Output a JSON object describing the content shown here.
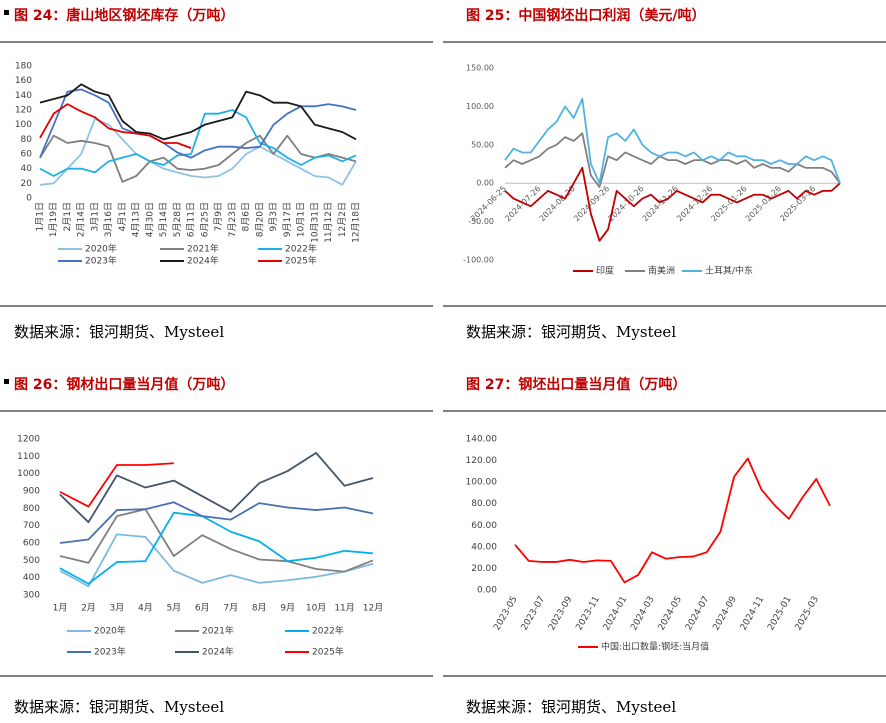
{
  "chart_data": [
    {
      "type": "line",
      "title": "图 24：唐山地区钢坯库存（万吨）",
      "source": "数据来源：银河期货、Mysteel",
      "categories": [
        "1月1日",
        "1月19日",
        "2月1日",
        "2月14日",
        "3月1日",
        "3月16日",
        "4月1日",
        "4月13日",
        "4月30日",
        "5月14日",
        "5月28日",
        "6月11日",
        "6月25日",
        "7月9日",
        "7月23日",
        "8月6日",
        "8月20日",
        "9月3日",
        "9月17日",
        "10月1日",
        "10月31日",
        "11月12日",
        "12月2日",
        "12月18日"
      ],
      "ylim": [
        0,
        180
      ],
      "yticks": [
        0,
        20,
        40,
        60,
        80,
        100,
        120,
        140,
        160,
        180
      ],
      "grid": false,
      "series": [
        {
          "name": "2020年",
          "color": "#8fc3e4",
          "values": [
            18,
            20,
            40,
            60,
            108,
            100,
            80,
            60,
            50,
            40,
            35,
            30,
            28,
            30,
            40,
            60,
            70,
            60,
            50,
            40,
            30,
            28,
            18,
            50
          ]
        },
        {
          "name": "2021年",
          "color": "#7f7f7f",
          "values": [
            55,
            85,
            75,
            78,
            75,
            70,
            22,
            30,
            50,
            55,
            40,
            38,
            40,
            45,
            60,
            75,
            85,
            60,
            85,
            60,
            55,
            60,
            55,
            50
          ]
        },
        {
          "name": "2022年",
          "color": "#1fb0e8",
          "values": [
            40,
            30,
            40,
            40,
            35,
            50,
            55,
            60,
            50,
            45,
            58,
            60,
            115,
            115,
            120,
            110,
            75,
            68,
            55,
            45,
            55,
            58,
            50,
            58
          ]
        },
        {
          "name": "2023年",
          "color": "#4472c4",
          "values": [
            55,
            100,
            145,
            148,
            140,
            130,
            95,
            88,
            85,
            75,
            62,
            55,
            65,
            70,
            70,
            68,
            70,
            100,
            115,
            125,
            125,
            128,
            125,
            120
          ]
        },
        {
          "name": "2024年",
          "color": "#1a1a1a",
          "values": [
            130,
            135,
            140,
            155,
            145,
            140,
            105,
            90,
            88,
            80,
            85,
            90,
            100,
            105,
            110,
            145,
            140,
            130,
            130,
            125,
            100,
            95,
            90,
            80
          ]
        },
        {
          "name": "2025年",
          "color": "#e00000",
          "values": [
            82,
            115,
            128,
            118,
            110,
            95,
            90,
            88,
            85,
            75,
            75,
            68,
            null,
            null,
            null,
            null,
            null,
            null,
            null,
            null,
            null,
            null,
            null,
            null
          ]
        }
      ]
    },
    {
      "type": "line",
      "title": "图 25：中国钢坯出口利润（美元/吨）",
      "source": "数据来源：银河期货、Mysteel",
      "categories": [
        "2024-06-25",
        null,
        null,
        null,
        "2024-07-26",
        null,
        null,
        null,
        "2024-08-26",
        null,
        null,
        null,
        "2024-09-26",
        null,
        null,
        null,
        "2024-10-26",
        null,
        null,
        null,
        "2024-11-26",
        null,
        null,
        null,
        "2024-12-26",
        null,
        null,
        null,
        "2025-01-26",
        null,
        null,
        null,
        "2025-02-26",
        null,
        null,
        null,
        "2025-03-26",
        null,
        null,
        null
      ],
      "ylim": [
        -100,
        150
      ],
      "yticks": [
        {
          "value": -100,
          "label": "-100.00"
        },
        {
          "value": -50,
          "label": "-50.00"
        },
        {
          "value": 0,
          "label": "0.00"
        },
        {
          "value": 50,
          "label": "50.00"
        },
        {
          "value": 100,
          "label": "100.00"
        },
        {
          "value": 150,
          "label": "150.00"
        }
      ],
      "grid": false,
      "series": [
        {
          "name": "印度",
          "color": "#c00000",
          "values": [
            -10,
            -20,
            -25,
            -30,
            -20,
            -10,
            -15,
            -20,
            0,
            20,
            -40,
            -75,
            -60,
            -10,
            -20,
            -30,
            -20,
            -15,
            -25,
            -20,
            -10,
            -15,
            -20,
            -25,
            -15,
            -15,
            -20,
            -25,
            -20,
            -15,
            -15,
            -20,
            -15,
            -10,
            -20,
            -10,
            -15,
            -10,
            -10,
            0
          ]
        },
        {
          "name": "南美洲",
          "color": "#808080",
          "values": [
            20,
            30,
            25,
            30,
            35,
            45,
            50,
            60,
            55,
            65,
            10,
            -5,
            35,
            30,
            40,
            35,
            30,
            25,
            35,
            30,
            30,
            25,
            30,
            30,
            25,
            30,
            30,
            25,
            30,
            20,
            25,
            20,
            20,
            15,
            25,
            20,
            20,
            20,
            15,
            0
          ]
        },
        {
          "name": "土耳其/中东",
          "color": "#4fb3e0",
          "values": [
            30,
            45,
            40,
            40,
            55,
            70,
            80,
            100,
            85,
            110,
            25,
            0,
            60,
            65,
            55,
            70,
            50,
            40,
            35,
            40,
            40,
            35,
            40,
            30,
            35,
            30,
            40,
            35,
            35,
            30,
            30,
            25,
            30,
            25,
            25,
            35,
            30,
            35,
            30,
            0
          ]
        }
      ]
    },
    {
      "type": "line",
      "title": "图 26：钢材出口量当月值（万吨）",
      "source": "数据来源：银河期货、Mysteel",
      "categories": [
        "1月",
        "2月",
        "3月",
        "4月",
        "5月",
        "6月",
        "7月",
        "8月",
        "9月",
        "10月",
        "11月",
        "12月"
      ],
      "ylim": [
        300,
        1200
      ],
      "yticks": [
        300,
        400,
        500,
        600,
        700,
        800,
        900,
        1000,
        1100,
        1200
      ],
      "grid": false,
      "series": [
        {
          "name": "2020年",
          "color": "#7fb9df",
          "values": [
            440,
            350,
            650,
            635,
            440,
            370,
            415,
            370,
            385,
            405,
            435,
            480
          ]
        },
        {
          "name": "2021年",
          "color": "#808080",
          "values": [
            525,
            485,
            755,
            795,
            525,
            645,
            565,
            505,
            495,
            450,
            435,
            500
          ]
        },
        {
          "name": "2022年",
          "color": "#00b0f0",
          "values": [
            455,
            365,
            490,
            495,
            775,
            755,
            665,
            610,
            495,
            515,
            555,
            540
          ]
        },
        {
          "name": "2023年",
          "color": "#4a6fb0",
          "values": [
            600,
            620,
            790,
            795,
            835,
            755,
            735,
            830,
            805,
            790,
            805,
            770
          ]
        },
        {
          "name": "2024年",
          "color": "#44546a",
          "values": [
            880,
            720,
            990,
            920,
            960,
            870,
            780,
            945,
            1015,
            1120,
            930,
            975
          ]
        },
        {
          "name": "2025年",
          "color": "#ff0000",
          "values": [
            895,
            810,
            1050,
            1050,
            1060,
            null,
            null,
            null,
            null,
            null,
            null,
            null
          ]
        }
      ]
    },
    {
      "type": "line",
      "title": "图 27：钢坯出口量当月值（万吨）",
      "source": "数据来源：银河期货、Mysteel",
      "categories": [
        "2023-05",
        null,
        "2023-07",
        null,
        "2023-09",
        null,
        "2023-11",
        null,
        "2024-01",
        null,
        "2024-03",
        null,
        "2024-05",
        null,
        "2024-07",
        null,
        "2024-09",
        null,
        "2024-11",
        null,
        "2025-01",
        null,
        "2025-03",
        null
      ],
      "ylim": [
        0,
        140
      ],
      "yticks": [
        {
          "value": 0,
          "label": "0.00"
        },
        {
          "value": 20,
          "label": "20.00"
        },
        {
          "value": 40,
          "label": "40.00"
        },
        {
          "value": 60,
          "label": "60.00"
        },
        {
          "value": 80,
          "label": "80.00"
        },
        {
          "value": 100,
          "label": "100.00"
        },
        {
          "value": 120,
          "label": "120.00"
        },
        {
          "value": 140,
          "label": "140.00"
        }
      ],
      "grid": false,
      "series": [
        {
          "name": "中国:出口数量:钢坯:当月值",
          "color": "#ff0000",
          "values": [
            42,
            27,
            26,
            26,
            28,
            26,
            27.5,
            27,
            7,
            14,
            35,
            29,
            30.5,
            31,
            35,
            54,
            105,
            122,
            93,
            78,
            66,
            86,
            103,
            78
          ]
        }
      ]
    }
  ]
}
